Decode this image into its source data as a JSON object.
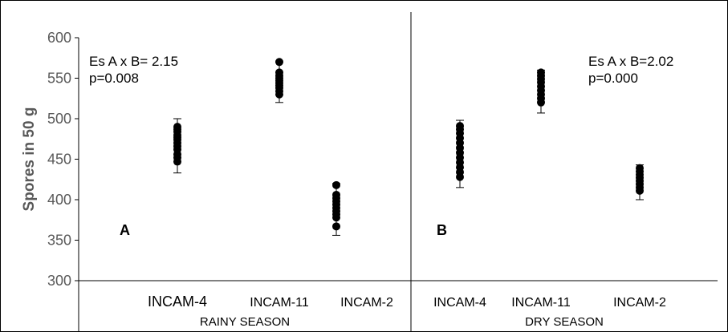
{
  "chart_data": {
    "type": "scatter",
    "ylabel": "Spores in 50 g",
    "ylim": [
      300,
      600
    ],
    "yticks": [
      300,
      350,
      400,
      450,
      500,
      550,
      600
    ],
    "grid": false,
    "panels": [
      {
        "panel_label": "A",
        "season": "RAINY SEASON",
        "annotation_line1": "Es A x B= 2.15",
        "annotation_line2": "p=0.008",
        "categories": [
          "INCAM-4",
          "INCAM-11",
          "INCAM-2"
        ],
        "groups": [
          {
            "category": "INCAM-4",
            "points": [
              447,
              452,
              456,
              462,
              466,
              470,
              474,
              477,
              480,
              484,
              487,
              490
            ],
            "error_low": 433,
            "error_high": 500
          },
          {
            "category": "INCAM-11",
            "points": [
              530,
              534,
              538,
              541,
              544,
              547,
              550,
              553,
              557,
              570
            ],
            "error_low": 520,
            "error_high": 570
          },
          {
            "category": "INCAM-2",
            "points": [
              367,
              378,
              382,
              386,
              390,
              394,
              398,
              402,
              406,
              418
            ],
            "error_low": 356,
            "error_high": 420
          }
        ]
      },
      {
        "panel_label": "B",
        "season": "DRY SEASON",
        "annotation_line1": "Es A x B=2.02",
        "annotation_line2": "p=0.000",
        "categories": [
          "INCAM-4",
          "INCAM-11",
          "INCAM-2"
        ],
        "groups": [
          {
            "category": "INCAM-4",
            "points": [
              428,
              434,
              440,
              446,
              452,
              458,
              464,
              470,
              476,
              482,
              487,
              491
            ],
            "error_low": 415,
            "error_high": 498
          },
          {
            "category": "INCAM-11",
            "points": [
              520,
              525,
              530,
              535,
              540,
              545,
              549,
              553,
              557
            ],
            "error_low": 507,
            "error_high": 560
          },
          {
            "category": "INCAM-2",
            "points": [
              411,
              415,
              419,
              423,
              427,
              431,
              435,
              439
            ],
            "error_low": 400,
            "error_high": 443
          }
        ]
      }
    ]
  },
  "colors": {
    "point": "#000000",
    "axis": "#000000",
    "ylabel": "#595959",
    "tick_label": "#595959",
    "category_label": "#000000"
  }
}
